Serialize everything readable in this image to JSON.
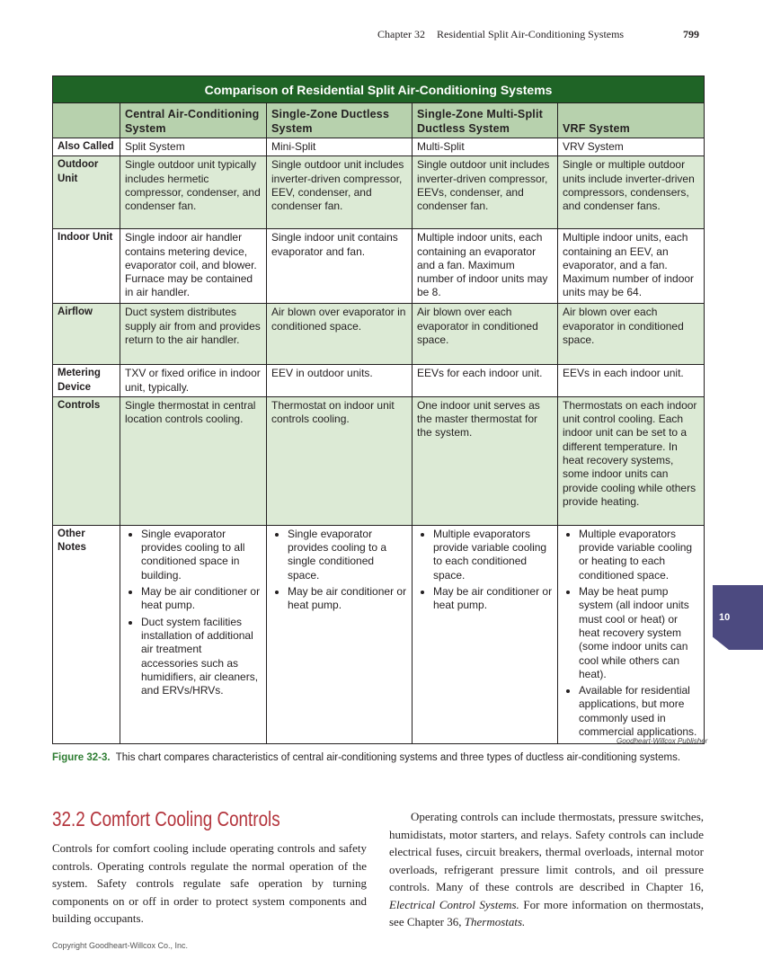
{
  "running_head": {
    "chapter": "Chapter 32",
    "title": "Residential Split Air-Conditioning Systems",
    "page": "799"
  },
  "table": {
    "title": "Comparison of Residential Split Air-Conditioning Systems",
    "headers": [
      "",
      "Central Air-Conditioning System",
      "Single-Zone Ductless System",
      "Single-Zone Multi-Split Ductless System",
      "VRF System"
    ],
    "rows": [
      {
        "label": "Also Called",
        "cells": [
          "Split System",
          "Mini-Split",
          "Multi-Split",
          "VRV System"
        ]
      },
      {
        "label": "Outdoor Unit",
        "cells": [
          "Single outdoor unit typically includes hermetic compressor, condenser, and condenser fan.",
          "Single outdoor unit includes inverter-driven compressor, EEV, condenser, and condenser fan.",
          "Single outdoor unit includes inverter-driven compressor, EEVs, condenser, and condenser fan.",
          "Single or multiple outdoor units include inverter-driven compressors, condensers, and condenser fans."
        ]
      },
      {
        "label": "Indoor Unit",
        "cells": [
          "Single indoor air handler contains metering device, evaporator coil, and blower. Furnace may be contained in air handler.",
          "Single indoor unit contains evaporator and fan.",
          "Multiple indoor units, each containing an evaporator and a fan. Maximum number of indoor units may be 8.",
          "Multiple indoor units, each containing an EEV, an evaporator, and a fan. Maximum number of indoor units may be 64."
        ]
      },
      {
        "label": "Airflow",
        "cells": [
          "Duct system distributes supply air from and provides return to the air handler.",
          "Air blown over evaporator in conditioned space.",
          "Air blown over each evaporator in conditioned space.",
          "Air blown over each evaporator in conditioned space."
        ]
      },
      {
        "label": "Metering Device",
        "cells": [
          "TXV or fixed orifice in indoor unit, typically.",
          "EEV in outdoor units.",
          "EEVs for each indoor unit.",
          "EEVs in each indoor unit."
        ]
      },
      {
        "label": "Controls",
        "cells": [
          "Single thermostat in central location controls cooling.",
          "Thermostat on indoor unit controls cooling.",
          "One indoor unit serves as the master thermostat for the system.",
          "Thermostats on each indoor unit control cooling. Each indoor unit can be set to a different temperature. In heat recovery systems, some indoor units can provide cooling while others provide heating."
        ]
      },
      {
        "label": "Other Notes",
        "lists": [
          [
            "Single evaporator provides cooling to all conditioned space in building.",
            "May be air conditioner or heat pump.",
            "Duct system facilities installation of additional air treatment accessories such as humidifiers, air cleaners, and ERVs/HRVs."
          ],
          [
            "Single evaporator provides cooling to a single conditioned space.",
            "May be air conditioner or heat pump."
          ],
          [
            "Multiple evaporators provide variable cooling to each conditioned space.",
            "May be air conditioner or heat pump."
          ],
          [
            "Multiple evaporators provide variable cooling or heating to each conditioned space.",
            "May be heat pump system (all indoor units must cool or heat) or heat recovery system (some indoor units can cool while others can heat).",
            "Available for residential applications, but more commonly used in commercial applications."
          ]
        ]
      }
    ]
  },
  "credit": "Goodheart-Willcox Publisher",
  "caption": {
    "label": "Figure 32-3.",
    "text": "This chart compares characteristics of central air-conditioning systems and three types of ductless air-conditioning systems."
  },
  "section": {
    "heading": "32.2 Comfort Cooling Controls",
    "para1": "Controls for comfort cooling include operating controls and safety controls. Operating controls regulate the normal operation of the system. Safety controls regulate safe operation by turning components on or off in order to protect system components and building occupants.",
    "para2_a": "Operating controls can include thermostats, pressure switches, humidistats, motor starters, and relays. Safety controls can include electrical fuses, circuit breakers, thermal overloads, internal motor overloads, refrigerant pressure limit controls, and oil pressure controls. Many of these controls are described in Chapter 16, ",
    "para2_ref1": "Electrical Control Systems.",
    "para2_b": " For more information on thermostats, see Chapter 36, ",
    "para2_ref2": "Thermostats."
  },
  "thumb_tab": "10",
  "copyright": "Copyright Goodheart-Willcox Co., Inc.",
  "colors": {
    "title_bar": "#1f6426",
    "header_row": "#b7d1ad",
    "shaded_row": "#dcead5",
    "heading": "#b3343c",
    "thumb_tab": "#4c4a80"
  }
}
